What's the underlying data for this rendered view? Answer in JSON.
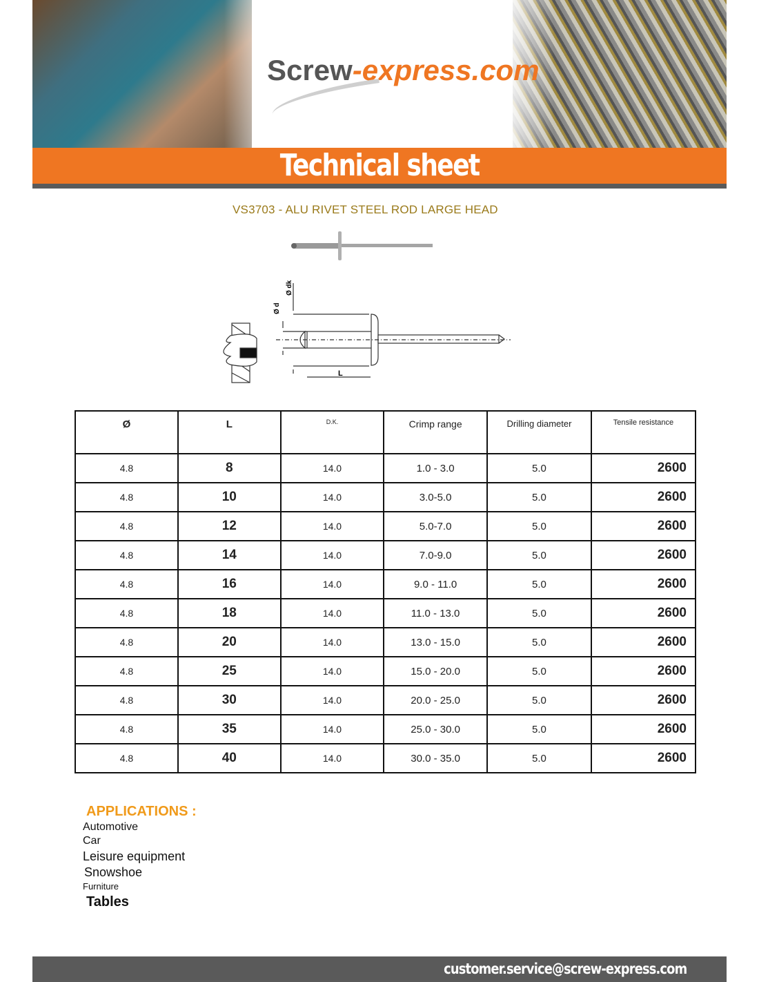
{
  "header": {
    "logo_part1": "Screw",
    "logo_part2": "-express.com",
    "banner_title": "Technical sheet"
  },
  "product": {
    "title": "VS3703 - ALU RIVET STEEL ROD LARGE HEAD",
    "diagram_labels": {
      "dk": "Ø dk",
      "d": "Ø d",
      "L": "L"
    }
  },
  "table": {
    "headers": [
      "Ø",
      "L",
      "D.K.",
      "Crimp range",
      "Drilling diameter",
      "Tensile resistance"
    ],
    "rows": [
      [
        "4.8",
        "8",
        "14.0",
        "1.0 - 3.0",
        "5.0",
        "2600"
      ],
      [
        "4.8",
        "10",
        "14.0",
        "3.0-5.0",
        "5.0",
        "2600"
      ],
      [
        "4.8",
        "12",
        "14.0",
        "5.0-7.0",
        "5.0",
        "2600"
      ],
      [
        "4.8",
        "14",
        "14.0",
        "7.0-9.0",
        "5.0",
        "2600"
      ],
      [
        "4.8",
        "16",
        "14.0",
        "9.0 - 11.0",
        "5.0",
        "2600"
      ],
      [
        "4.8",
        "18",
        "14.0",
        "11.0 - 13.0",
        "5.0",
        "2600"
      ],
      [
        "4.8",
        "20",
        "14.0",
        "13.0 - 15.0",
        "5.0",
        "2600"
      ],
      [
        "4.8",
        "25",
        "14.0",
        "15.0 - 20.0",
        "5.0",
        "2600"
      ],
      [
        "4.8",
        "30",
        "14.0",
        "20.0 - 25.0",
        "5.0",
        "2600"
      ],
      [
        "4.8",
        "35",
        "14.0",
        "25.0 - 30.0",
        "5.0",
        "2600"
      ],
      [
        "4.8",
        "40",
        "14.0",
        "30.0 - 35.0",
        "5.0",
        "2600"
      ]
    ]
  },
  "applications": {
    "title": "APPLICATIONS :",
    "items": [
      "Automotive",
      "Car",
      "Leisure equipment",
      "Snowshoe",
      "Furniture",
      "Tables"
    ]
  },
  "footer": {
    "email": "customer.service@screw-express.com"
  },
  "colors": {
    "orange": "#ef7622",
    "grey": "#5a5a5a",
    "title_gold": "#9a7a1a",
    "applications_orange": "#f09a1a"
  }
}
